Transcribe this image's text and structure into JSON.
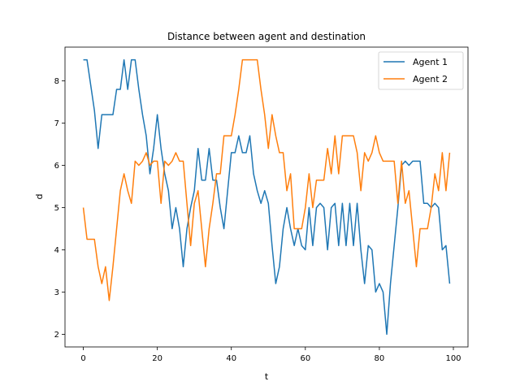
{
  "chart_data": {
    "type": "line",
    "title": "Distance between agent and destination",
    "xlabel": "t",
    "ylabel": "d",
    "xlim": [
      -4.95,
      103.95
    ],
    "ylim": [
      1.7,
      8.8
    ],
    "xticks": [
      0,
      20,
      40,
      60,
      80,
      100
    ],
    "yticks": [
      2,
      3,
      4,
      5,
      6,
      7,
      8
    ],
    "grid": false,
    "legend_position": "top-right",
    "series": [
      {
        "name": "Agent 1",
        "color": "#1f77b4",
        "x": [
          0,
          1,
          2,
          3,
          4,
          5,
          6,
          7,
          8,
          9,
          10,
          11,
          12,
          13,
          14,
          15,
          16,
          17,
          18,
          19,
          20,
          21,
          22,
          23,
          24,
          25,
          26,
          27,
          28,
          29,
          30,
          31,
          32,
          33,
          34,
          35,
          36,
          37,
          38,
          39,
          40,
          41,
          42,
          43,
          44,
          45,
          46,
          47,
          48,
          49,
          50,
          51,
          52,
          53,
          54,
          55,
          56,
          57,
          58,
          59,
          60,
          61,
          62,
          63,
          64,
          65,
          66,
          67,
          68,
          69,
          70,
          71,
          72,
          73,
          74,
          75,
          76,
          77,
          78,
          79,
          80,
          81,
          82,
          83,
          84,
          85,
          86,
          87,
          88,
          89,
          90,
          91,
          92,
          93,
          94,
          95,
          96,
          97,
          98,
          99
        ],
        "values": [
          8.5,
          8.5,
          7.9,
          7.3,
          6.4,
          7.2,
          7.2,
          7.2,
          7.2,
          7.8,
          7.8,
          8.5,
          7.8,
          8.5,
          8.5,
          7.8,
          7.2,
          6.7,
          5.8,
          6.4,
          7.2,
          6.4,
          5.8,
          5.4,
          4.5,
          5.0,
          4.5,
          3.6,
          4.5,
          5.0,
          5.4,
          6.4,
          5.65,
          5.65,
          6.4,
          5.65,
          5.65,
          5.0,
          4.5,
          5.4,
          6.3,
          6.3,
          6.7,
          6.3,
          6.3,
          6.7,
          5.8,
          5.4,
          5.1,
          5.4,
          5.1,
          4.1,
          3.2,
          3.6,
          4.5,
          5.0,
          4.5,
          4.1,
          4.5,
          4.1,
          4.0,
          5.0,
          4.1,
          5.0,
          5.1,
          5.0,
          4.0,
          5.0,
          5.1,
          4.1,
          5.1,
          4.1,
          5.1,
          4.1,
          5.1,
          4.0,
          3.2,
          4.1,
          4.0,
          3.0,
          3.2,
          3.0,
          2.0,
          3.2,
          4.1,
          5.0,
          6.0,
          6.1,
          6.0,
          6.1,
          6.1,
          6.1,
          5.1,
          5.1,
          5.0,
          5.1,
          5.0,
          4.0,
          4.1,
          3.2
        ]
      },
      {
        "name": "Agent 2",
        "color": "#ff7f0e",
        "x": [
          0,
          1,
          2,
          3,
          4,
          5,
          6,
          7,
          8,
          9,
          10,
          11,
          12,
          13,
          14,
          15,
          16,
          17,
          18,
          19,
          20,
          21,
          22,
          23,
          24,
          25,
          26,
          27,
          28,
          29,
          30,
          31,
          32,
          33,
          34,
          35,
          36,
          37,
          38,
          39,
          40,
          41,
          42,
          43,
          44,
          45,
          46,
          47,
          48,
          49,
          50,
          51,
          52,
          53,
          54,
          55,
          56,
          57,
          58,
          59,
          60,
          61,
          62,
          63,
          64,
          65,
          66,
          67,
          68,
          69,
          70,
          71,
          72,
          73,
          74,
          75,
          76,
          77,
          78,
          79,
          80,
          81,
          82,
          83,
          84,
          85,
          86,
          87,
          88,
          89,
          90,
          91,
          92,
          93,
          94,
          95,
          96,
          97,
          98,
          99
        ],
        "values": [
          5.0,
          4.25,
          4.25,
          4.25,
          3.6,
          3.2,
          3.6,
          2.8,
          3.6,
          4.5,
          5.4,
          5.8,
          5.4,
          5.1,
          6.1,
          6.0,
          6.1,
          6.3,
          6.0,
          6.1,
          6.1,
          5.1,
          6.1,
          6.0,
          6.1,
          6.3,
          6.1,
          6.1,
          5.1,
          4.1,
          5.1,
          5.4,
          4.5,
          3.6,
          4.5,
          5.1,
          5.8,
          5.8,
          6.7,
          6.7,
          6.7,
          7.2,
          7.8,
          8.5,
          8.5,
          8.5,
          8.5,
          8.5,
          7.8,
          7.2,
          6.4,
          7.2,
          6.7,
          6.3,
          6.3,
          5.4,
          5.8,
          4.5,
          4.5,
          4.5,
          5.0,
          5.8,
          5.0,
          5.65,
          5.65,
          5.65,
          6.4,
          5.8,
          6.7,
          5.8,
          6.7,
          6.7,
          6.7,
          6.7,
          6.3,
          5.4,
          6.3,
          6.1,
          6.3,
          6.7,
          6.3,
          6.1,
          6.1,
          6.1,
          6.1,
          5.1,
          6.1,
          5.1,
          5.4,
          4.5,
          3.6,
          4.5,
          4.5,
          4.5,
          5.0,
          5.8,
          5.4,
          6.3,
          5.4,
          6.3
        ]
      }
    ]
  }
}
